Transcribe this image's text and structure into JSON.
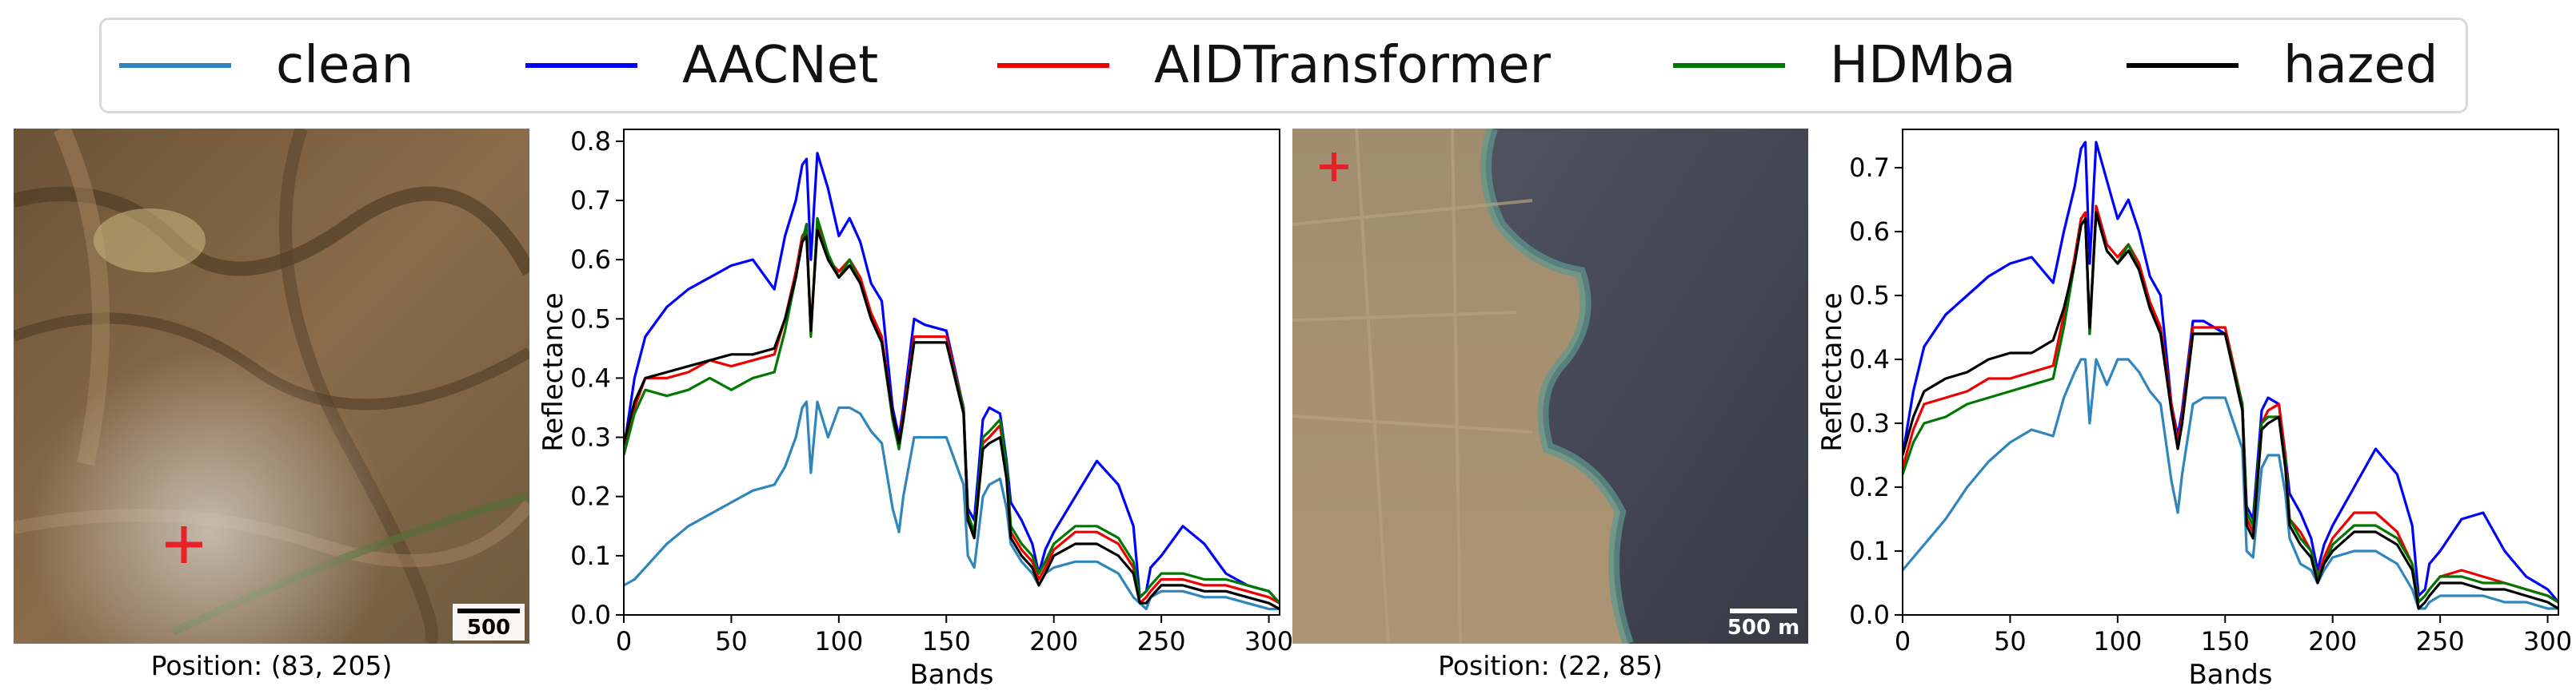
{
  "legend": {
    "entries": [
      {
        "label": "clean",
        "color": "#2f86bd"
      },
      {
        "label": "AACNet",
        "color": "#0000ff"
      },
      {
        "label": "AIDTransformer",
        "color": "#ee0000"
      },
      {
        "label": "HDMba",
        "color": "#007700"
      },
      {
        "label": "hazed",
        "color": "#000000"
      }
    ]
  },
  "panels": [
    {
      "image": {
        "scalebar_label": "500 m",
        "marker_icon": "red-cross-marker",
        "caption": "Position: (83, 205)"
      }
    },
    {
      "image": {
        "scalebar_label": "500 m",
        "marker_icon": "red-cross-marker",
        "caption": "Position: (22, 85)"
      }
    }
  ],
  "chart_data": [
    {
      "type": "line",
      "title": "",
      "xlabel": "Bands",
      "ylabel": "Reflectance",
      "xlim": [
        0,
        305
      ],
      "ylim": [
        0,
        0.82
      ],
      "xticks": [
        0,
        50,
        100,
        150,
        200,
        250,
        300
      ],
      "yticks": [
        0.0,
        0.1,
        0.2,
        0.3,
        0.4,
        0.5,
        0.6,
        0.7,
        0.8
      ],
      "x": [
        0,
        5,
        10,
        20,
        30,
        40,
        50,
        60,
        70,
        75,
        80,
        83,
        85,
        87,
        90,
        95,
        100,
        105,
        110,
        115,
        120,
        125,
        128,
        130,
        135,
        140,
        150,
        158,
        160,
        163,
        167,
        170,
        175,
        178,
        180,
        185,
        190,
        193,
        196,
        200,
        210,
        220,
        230,
        237,
        240,
        243,
        245,
        250,
        260,
        270,
        280,
        290,
        300,
        305
      ],
      "series": [
        {
          "name": "clean",
          "values": [
            0.05,
            0.06,
            0.08,
            0.12,
            0.15,
            0.17,
            0.19,
            0.21,
            0.22,
            0.25,
            0.3,
            0.35,
            0.36,
            0.24,
            0.36,
            0.3,
            0.35,
            0.35,
            0.34,
            0.31,
            0.29,
            0.18,
            0.14,
            0.2,
            0.3,
            0.3,
            0.3,
            0.22,
            0.1,
            0.08,
            0.2,
            0.22,
            0.23,
            0.18,
            0.12,
            0.09,
            0.07,
            0.05,
            0.07,
            0.08,
            0.09,
            0.09,
            0.07,
            0.03,
            0.02,
            0.01,
            0.03,
            0.04,
            0.04,
            0.03,
            0.03,
            0.02,
            0.01,
            0.01
          ]
        },
        {
          "name": "AACNet",
          "values": [
            0.28,
            0.4,
            0.47,
            0.52,
            0.55,
            0.57,
            0.59,
            0.6,
            0.55,
            0.64,
            0.7,
            0.76,
            0.77,
            0.6,
            0.78,
            0.72,
            0.64,
            0.67,
            0.63,
            0.56,
            0.53,
            0.35,
            0.3,
            0.35,
            0.5,
            0.49,
            0.48,
            0.35,
            0.18,
            0.16,
            0.33,
            0.35,
            0.34,
            0.26,
            0.19,
            0.16,
            0.12,
            0.07,
            0.11,
            0.14,
            0.2,
            0.26,
            0.22,
            0.15,
            0.03,
            0.04,
            0.08,
            0.1,
            0.15,
            0.12,
            0.07,
            0.05,
            0.04,
            0.02
          ]
        },
        {
          "name": "AIDTransformer",
          "values": [
            0.28,
            0.35,
            0.4,
            0.4,
            0.41,
            0.43,
            0.42,
            0.43,
            0.44,
            0.5,
            0.58,
            0.64,
            0.65,
            0.48,
            0.66,
            0.6,
            0.58,
            0.6,
            0.57,
            0.51,
            0.47,
            0.34,
            0.29,
            0.34,
            0.47,
            0.47,
            0.47,
            0.35,
            0.16,
            0.13,
            0.29,
            0.3,
            0.32,
            0.24,
            0.14,
            0.11,
            0.09,
            0.06,
            0.08,
            0.11,
            0.14,
            0.14,
            0.12,
            0.08,
            0.02,
            0.03,
            0.04,
            0.06,
            0.06,
            0.05,
            0.05,
            0.04,
            0.03,
            0.02
          ]
        },
        {
          "name": "HDMba",
          "values": [
            0.27,
            0.34,
            0.38,
            0.37,
            0.38,
            0.4,
            0.38,
            0.4,
            0.41,
            0.48,
            0.57,
            0.63,
            0.66,
            0.47,
            0.67,
            0.61,
            0.57,
            0.6,
            0.56,
            0.5,
            0.46,
            0.33,
            0.28,
            0.33,
            0.46,
            0.46,
            0.46,
            0.35,
            0.17,
            0.14,
            0.3,
            0.31,
            0.33,
            0.25,
            0.15,
            0.12,
            0.1,
            0.07,
            0.09,
            0.12,
            0.15,
            0.15,
            0.13,
            0.09,
            0.03,
            0.04,
            0.05,
            0.07,
            0.07,
            0.06,
            0.06,
            0.05,
            0.04,
            0.02
          ]
        },
        {
          "name": "hazed",
          "values": [
            0.29,
            0.36,
            0.4,
            0.41,
            0.42,
            0.43,
            0.44,
            0.44,
            0.45,
            0.5,
            0.57,
            0.63,
            0.64,
            0.48,
            0.65,
            0.6,
            0.57,
            0.59,
            0.56,
            0.5,
            0.46,
            0.34,
            0.29,
            0.33,
            0.46,
            0.46,
            0.46,
            0.34,
            0.16,
            0.13,
            0.28,
            0.29,
            0.3,
            0.23,
            0.13,
            0.1,
            0.08,
            0.05,
            0.07,
            0.1,
            0.12,
            0.12,
            0.1,
            0.07,
            0.02,
            0.02,
            0.03,
            0.05,
            0.05,
            0.04,
            0.04,
            0.03,
            0.02,
            0.01
          ]
        }
      ]
    },
    {
      "type": "line",
      "title": "",
      "xlabel": "Bands",
      "ylabel": "Reflectance",
      "xlim": [
        0,
        305
      ],
      "ylim": [
        0,
        0.76
      ],
      "xticks": [
        0,
        50,
        100,
        150,
        200,
        250,
        300
      ],
      "yticks": [
        0.0,
        0.1,
        0.2,
        0.3,
        0.4,
        0.5,
        0.6,
        0.7
      ],
      "x": [
        0,
        5,
        10,
        20,
        30,
        40,
        50,
        60,
        70,
        75,
        80,
        83,
        85,
        87,
        90,
        95,
        100,
        105,
        110,
        115,
        120,
        125,
        128,
        130,
        135,
        140,
        150,
        158,
        160,
        163,
        167,
        170,
        175,
        178,
        180,
        185,
        190,
        193,
        196,
        200,
        210,
        220,
        230,
        237,
        240,
        243,
        245,
        250,
        260,
        270,
        280,
        290,
        300,
        305
      ],
      "series": [
        {
          "name": "clean",
          "values": [
            0.07,
            0.09,
            0.11,
            0.15,
            0.2,
            0.24,
            0.27,
            0.29,
            0.28,
            0.34,
            0.38,
            0.4,
            0.4,
            0.3,
            0.4,
            0.36,
            0.4,
            0.4,
            0.38,
            0.35,
            0.33,
            0.21,
            0.16,
            0.22,
            0.33,
            0.34,
            0.34,
            0.26,
            0.1,
            0.09,
            0.23,
            0.25,
            0.25,
            0.19,
            0.12,
            0.08,
            0.07,
            0.05,
            0.07,
            0.09,
            0.1,
            0.1,
            0.08,
            0.04,
            0.01,
            0.01,
            0.02,
            0.03,
            0.03,
            0.03,
            0.02,
            0.02,
            0.01,
            0.01
          ]
        },
        {
          "name": "AACNet",
          "values": [
            0.25,
            0.35,
            0.42,
            0.47,
            0.5,
            0.53,
            0.55,
            0.56,
            0.52,
            0.6,
            0.67,
            0.73,
            0.74,
            0.55,
            0.74,
            0.68,
            0.62,
            0.65,
            0.6,
            0.53,
            0.5,
            0.33,
            0.28,
            0.32,
            0.46,
            0.46,
            0.44,
            0.33,
            0.17,
            0.15,
            0.32,
            0.34,
            0.33,
            0.25,
            0.19,
            0.16,
            0.12,
            0.07,
            0.11,
            0.14,
            0.2,
            0.26,
            0.22,
            0.14,
            0.03,
            0.04,
            0.08,
            0.1,
            0.15,
            0.16,
            0.1,
            0.06,
            0.04,
            0.02
          ]
        },
        {
          "name": "AIDTransformer",
          "values": [
            0.23,
            0.29,
            0.33,
            0.34,
            0.35,
            0.37,
            0.37,
            0.38,
            0.39,
            0.47,
            0.56,
            0.62,
            0.63,
            0.44,
            0.64,
            0.58,
            0.56,
            0.58,
            0.55,
            0.49,
            0.45,
            0.33,
            0.27,
            0.31,
            0.45,
            0.45,
            0.45,
            0.33,
            0.15,
            0.13,
            0.3,
            0.32,
            0.33,
            0.25,
            0.15,
            0.13,
            0.1,
            0.06,
            0.09,
            0.12,
            0.16,
            0.16,
            0.13,
            0.08,
            0.02,
            0.03,
            0.04,
            0.06,
            0.07,
            0.06,
            0.05,
            0.04,
            0.03,
            0.02
          ]
        },
        {
          "name": "HDMba",
          "values": [
            0.22,
            0.27,
            0.3,
            0.31,
            0.33,
            0.34,
            0.35,
            0.36,
            0.37,
            0.45,
            0.55,
            0.61,
            0.62,
            0.44,
            0.63,
            0.57,
            0.55,
            0.58,
            0.54,
            0.48,
            0.44,
            0.32,
            0.26,
            0.3,
            0.44,
            0.44,
            0.44,
            0.33,
            0.16,
            0.14,
            0.3,
            0.31,
            0.31,
            0.24,
            0.15,
            0.12,
            0.1,
            0.06,
            0.08,
            0.11,
            0.14,
            0.14,
            0.12,
            0.08,
            0.02,
            0.03,
            0.04,
            0.06,
            0.06,
            0.05,
            0.05,
            0.04,
            0.03,
            0.02
          ]
        },
        {
          "name": "hazed",
          "values": [
            0.25,
            0.31,
            0.35,
            0.37,
            0.38,
            0.4,
            0.41,
            0.41,
            0.43,
            0.48,
            0.55,
            0.61,
            0.62,
            0.45,
            0.63,
            0.57,
            0.55,
            0.57,
            0.54,
            0.48,
            0.44,
            0.32,
            0.26,
            0.3,
            0.44,
            0.44,
            0.44,
            0.32,
            0.14,
            0.12,
            0.29,
            0.3,
            0.31,
            0.23,
            0.14,
            0.11,
            0.09,
            0.05,
            0.08,
            0.1,
            0.13,
            0.13,
            0.11,
            0.07,
            0.01,
            0.02,
            0.03,
            0.05,
            0.05,
            0.04,
            0.04,
            0.03,
            0.02,
            0.01
          ]
        }
      ]
    }
  ]
}
